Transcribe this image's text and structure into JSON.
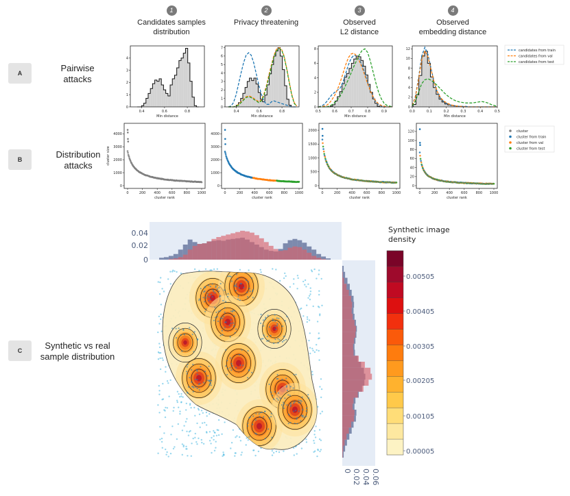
{
  "rows": [
    {
      "badge": "A",
      "label": "Pairwise\nattacks"
    },
    {
      "badge": "B",
      "label": "Distribution\nattacks"
    },
    {
      "badge": "C",
      "label": "Synthetic vs real\nsample distribution"
    }
  ],
  "columns": [
    {
      "num": "1",
      "title": "Candidates samples\ndistribution"
    },
    {
      "num": "2",
      "title": "Privacy threatening"
    },
    {
      "num": "3",
      "title": "Observed\nL2 distance"
    },
    {
      "num": "4",
      "title": "Observed\nembedding distance"
    }
  ],
  "colors": {
    "train": "#1f77b4",
    "val": "#ff7f0e",
    "test": "#2ca02c",
    "cluster": "#7f7f7f",
    "hist_fill": "#d3d3d3",
    "marg_bg": "#e5ecf6",
    "marg_real": "#5a6a94",
    "marg_synth": "#d9626c"
  },
  "chart_data": [
    {
      "type": "line",
      "title": "Pairwise attacks",
      "xlabel": "Min distance",
      "legend": [
        "candidates from train",
        "candidates from val",
        "candidates from test"
      ],
      "panels": [
        {
          "xlim": [
            0.3,
            0.95
          ],
          "ylim": [
            0,
            5
          ],
          "xticks": [
            "0.4",
            "0.6",
            "0.8"
          ],
          "yticks": [
            "0",
            "1",
            "2",
            "3",
            "4"
          ],
          "hist": [
            0,
            0,
            0.1,
            0.3,
            0.7,
            1.1,
            1.5,
            1.9,
            2.2,
            2.1,
            2.3,
            1.8,
            1.4,
            1.1,
            0.9,
            1.8,
            2.3,
            2.6,
            3.2,
            3.8,
            4.0,
            4.4,
            4.8,
            3.6,
            2.1,
            0.8,
            0.1,
            0
          ]
        },
        {
          "xlim": [
            0.3,
            0.95
          ],
          "ylim": [
            0,
            7.2
          ],
          "xticks": [
            "0.4",
            "0.6",
            "0.8"
          ],
          "yticks": [
            "0",
            "1",
            "2",
            "3",
            "4",
            "5",
            "6",
            "7"
          ],
          "hist": [
            0,
            0,
            0.2,
            0.5,
            1.0,
            1.6,
            2.3,
            3.0,
            3.4,
            3.1,
            3.4,
            2.7,
            1.7,
            0.9,
            0.6,
            1.4,
            2.6,
            3.9,
            5.0,
            6.0,
            6.6,
            7.0,
            6.0,
            4.4,
            2.5,
            0.9,
            0.2,
            0
          ],
          "curves": {
            "train": [
              0,
              0.1,
              0.5,
              1.4,
              2.7,
              4.0,
              5.2,
              6.1,
              6.4,
              6.1,
              5.2,
              3.9,
              2.6,
              1.5,
              0.7,
              0.3,
              0.3,
              0.6,
              0.7,
              0.6,
              0.5,
              0.4,
              0.3,
              0.2,
              0.1,
              0,
              0,
              0
            ],
            "val": [
              0,
              0,
              0,
              0.1,
              0.3,
              0.6,
              0.9,
              1.2,
              1.3,
              1.2,
              1.0,
              0.8,
              0.6,
              0.8,
              1.5,
              2.5,
              3.8,
              5.0,
              6.1,
              6.8,
              7.0,
              6.8,
              6.0,
              4.6,
              3.0,
              1.5,
              0.5,
              0.1
            ],
            "test": [
              0,
              0,
              0,
              0.1,
              0.2,
              0.5,
              0.8,
              1.1,
              1.2,
              1.1,
              0.9,
              0.7,
              0.5,
              0.7,
              1.3,
              2.3,
              3.5,
              4.8,
              5.9,
              6.6,
              6.9,
              6.7,
              5.9,
              4.5,
              2.9,
              1.4,
              0.4,
              0.1
            ]
          }
        },
        {
          "xlim": [
            0.5,
            0.95
          ],
          "ylim": [
            0,
            8.4
          ],
          "xticks": [
            "0.5",
            "0.6",
            "0.7",
            "0.8",
            "0.9"
          ],
          "yticks": [
            "0",
            "2",
            "4",
            "6",
            "8"
          ],
          "hist": [
            0,
            0,
            0,
            0.1,
            0.3,
            0.8,
            1.4,
            2.1,
            3.2,
            4.1,
            4.6,
            5.3,
            6.0,
            6.6,
            7.0,
            6.9,
            6.4,
            5.6,
            4.4,
            3.1,
            2.0,
            1.1,
            0.5,
            0.1,
            0,
            0,
            0,
            0
          ],
          "curves": {
            "train": [
              0,
              0.1,
              0.3,
              0.7,
              1.2,
              1.7,
              2.0,
              2.3,
              2.6,
              3.4,
              4.6,
              5.8,
              6.7,
              7.1,
              7.0,
              6.5,
              5.7,
              4.6,
              3.4,
              2.3,
              1.4,
              0.7,
              0.3,
              0.1,
              0,
              0,
              0,
              0
            ],
            "val": [
              0,
              0,
              0.1,
              0.2,
              0.5,
              1.0,
              1.6,
              2.4,
              3.4,
              4.6,
              5.8,
              6.8,
              7.3,
              7.4,
              7.0,
              6.3,
              5.4,
              4.3,
              3.2,
              2.2,
              1.4,
              0.8,
              0.4,
              0.2,
              0.1,
              0,
              0,
              0
            ],
            "test": [
              0,
              0,
              0,
              0,
              0.1,
              0.3,
              0.6,
              1.0,
              1.5,
              2.2,
              3.0,
              3.8,
              4.7,
              5.6,
              6.4,
              7.2,
              7.8,
              8.0,
              7.5,
              6.3,
              4.8,
              3.3,
              2.0,
              1.1,
              0.5,
              0.2,
              0.1,
              0
            ]
          }
        },
        {
          "xlim": [
            0.0,
            0.5
          ],
          "ylim": [
            0,
            12.6
          ],
          "xticks": [
            "0.0",
            "0.1",
            "0.2",
            "0.3",
            "0.4",
            "0.5"
          ],
          "yticks": [
            "0",
            "2",
            "4",
            "6",
            "8",
            "10",
            "12"
          ],
          "hist": [
            0.5,
            2.5,
            6.5,
            10.5,
            11.5,
            9.0,
            6.2,
            4.0,
            2.6,
            1.6,
            1.0,
            0.6,
            0.4,
            0.3,
            0.2,
            0.1,
            0.1,
            0,
            0,
            0,
            0,
            0,
            0,
            0,
            0,
            0,
            0,
            0
          ],
          "curves": {
            "train": [
              0.3,
              2.2,
              6.0,
              10.5,
              12.3,
              10.8,
              7.8,
              5.0,
              3.0,
              1.8,
              1.1,
              0.7,
              0.4,
              0.3,
              0.2,
              0.1,
              0.1,
              0.1,
              0,
              0,
              0,
              0,
              0,
              0,
              0,
              0,
              0,
              0
            ],
            "val": [
              0.3,
              2.0,
              5.6,
              9.8,
              11.6,
              10.3,
              7.6,
              5.0,
              3.1,
              1.9,
              1.2,
              0.8,
              0.5,
              0.3,
              0.2,
              0.1,
              0.1,
              0,
              0,
              0,
              0,
              0,
              0,
              0,
              0,
              0,
              0,
              0
            ],
            "test": [
              0.2,
              1.2,
              3.0,
              4.8,
              5.6,
              5.8,
              5.5,
              5.0,
              4.4,
              3.7,
              3.0,
              2.4,
              1.9,
              1.5,
              1.2,
              1.0,
              0.9,
              0.8,
              0.8,
              0.8,
              0.9,
              1.0,
              1.1,
              1.0,
              0.8,
              0.5,
              0.3,
              0.1
            ]
          }
        }
      ]
    },
    {
      "type": "scatter",
      "title": "Distribution attacks",
      "xlabel": "cluster rank",
      "ylabel": "cluster size",
      "xticks": [
        "0",
        "200",
        "400",
        "600",
        "800",
        "1000"
      ],
      "legend": [
        "cluster",
        "cluster from train",
        "cluster from val",
        "cluster from test"
      ],
      "panels": [
        {
          "ymax": 4700,
          "yticks": [
            "0",
            "1000",
            "2000",
            "3000",
            "4000"
          ],
          "ytick_values": [
            0,
            1000,
            2000,
            3000,
            4000
          ],
          "top_points": [
            4300,
            4100,
            3600,
            3400
          ],
          "a": 2700,
          "b": 90,
          "mode": "gray"
        },
        {
          "ymax": 4700,
          "yticks": [
            "0",
            "1000",
            "2000",
            "3000",
            "4000"
          ],
          "ytick_values": [
            0,
            1000,
            2000,
            3000,
            4000
          ],
          "top_points": [
            4300,
            3600,
            3200
          ],
          "a": 2700,
          "b": 90,
          "mode": "split"
        },
        {
          "ymax": 2200,
          "yticks": [
            "0",
            "500",
            "1000",
            "1500",
            "2000"
          ],
          "ytick_values": [
            0,
            500,
            1000,
            1500,
            2000
          ],
          "top_points": [
            2050,
            1800
          ],
          "a": 1700,
          "b": 50,
          "mode": "mixed"
        },
        {
          "ymax": 135,
          "yticks": [
            "0",
            "20",
            "40",
            "60",
            "80",
            "100",
            "120"
          ],
          "ytick_values": [
            0,
            20,
            40,
            60,
            80,
            100,
            120
          ],
          "top_points": [
            125,
            95,
            90
          ],
          "a": 75,
          "b": 40,
          "mode": "mixed"
        }
      ]
    },
    {
      "type": "heatmap",
      "title": "Synthetic vs real sample distribution",
      "colorbar_title": "Synthetic image\n density",
      "colorbar_ticks": [
        "0.00505",
        "0.00405",
        "0.00305",
        "0.00205",
        "0.00105",
        "0.00005"
      ],
      "top_marginal_yticks": [
        "0.04",
        "0.02",
        "0"
      ],
      "right_marginal_xticks": [
        "0",
        "0.02",
        "0.04",
        "0.06"
      ],
      "top_marginal": {
        "real": [
          0.3,
          0.4,
          0.6,
          0.9,
          1.6,
          2.4,
          3.2,
          2.8,
          2.5,
          2.6,
          2.9,
          3.0,
          3.1,
          3.0,
          3.2,
          3.3,
          3.4,
          3.5,
          3.2,
          2.8,
          2.4,
          2.0,
          1.6,
          1.4,
          1.3,
          1.7,
          2.6,
          3.1,
          3.3,
          3.1,
          2.7,
          2.1,
          1.6,
          0.9,
          0.5,
          0.2
        ],
        "synth": [
          0,
          0,
          0.1,
          0.2,
          0.4,
          0.8,
          1.6,
          2.2,
          2.5,
          2.6,
          2.9,
          3.3,
          3.6,
          3.8,
          4.0,
          4.2,
          4.4,
          4.6,
          4.5,
          4.3,
          3.9,
          3.4,
          2.8,
          2.2,
          1.7,
          1.4,
          1.5,
          1.9,
          2.1,
          2.0,
          1.6,
          1.1,
          0.6,
          0.3,
          0.1,
          0
        ]
      },
      "right_marginal": {
        "real": [
          0.3,
          0.6,
          1.1,
          1.6,
          2.0,
          2.4,
          2.5,
          2.4,
          2.6,
          2.9,
          3.1,
          3.0,
          2.8,
          2.6,
          2.7,
          3.3,
          4.0,
          4.6,
          4.9,
          4.7,
          4.2,
          3.5,
          2.8,
          2.6,
          3.0,
          2.9,
          2.4,
          2.0,
          1.5,
          1.0,
          0.6,
          0.3
        ],
        "synth": [
          0,
          0.1,
          0.4,
          0.9,
          1.4,
          1.9,
          2.1,
          2.0,
          2.2,
          2.6,
          2.9,
          2.8,
          2.5,
          2.3,
          2.4,
          3.5,
          4.8,
          6.0,
          6.3,
          5.6,
          4.5,
          3.3,
          2.4,
          2.2,
          2.6,
          2.5,
          1.9,
          1.4,
          0.9,
          0.5,
          0.2,
          0.1
        ]
      }
    }
  ]
}
